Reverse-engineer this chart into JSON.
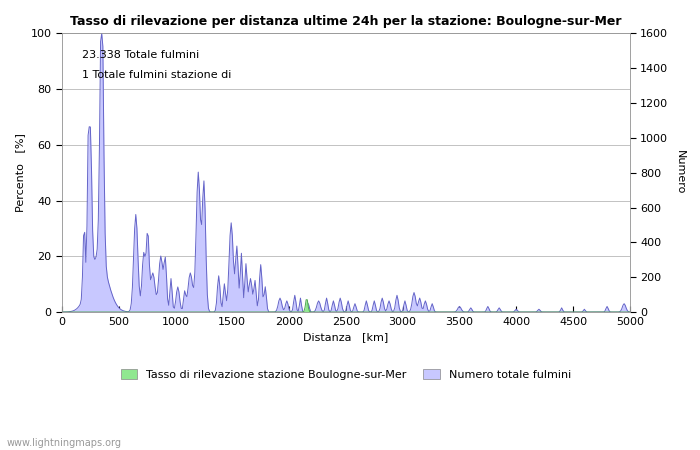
{
  "title": "Tasso di rilevazione per distanza ultime 24h per la stazione: Boulogne-sur-Mer",
  "xlabel": "Distanza   [km]",
  "ylabel_left": "Percento   [%]",
  "ylabel_right": "Numero",
  "annotation_line1": "23.338 Totale fulmini",
  "annotation_line2": "1 Totale fulmini stazione di",
  "xlim": [
    0,
    5000
  ],
  "ylim_left": [
    0,
    100
  ],
  "ylim_right": [
    0,
    1600
  ],
  "xticks": [
    0,
    500,
    1000,
    1500,
    2000,
    2500,
    3000,
    3500,
    4000,
    4500,
    5000
  ],
  "yticks_left": [
    0,
    20,
    40,
    60,
    80,
    100
  ],
  "yticks_right": [
    0,
    200,
    400,
    600,
    800,
    1000,
    1200,
    1400,
    1600
  ],
  "legend_label_green": "Tasso di rilevazione stazione Boulogne-sur-Mer",
  "legend_label_blue": "Numero totale fulmini",
  "color_blue_fill": "#c8c8ff",
  "color_blue_line": "#6464c8",
  "color_green_fill": "#90e890",
  "color_green_line": "#50a850",
  "watermark": "www.lightningmaps.org",
  "background_color": "#ffffff",
  "grid_color": "#aaaaaa",
  "fig_width": 7.0,
  "fig_height": 4.5,
  "dpi": 100
}
